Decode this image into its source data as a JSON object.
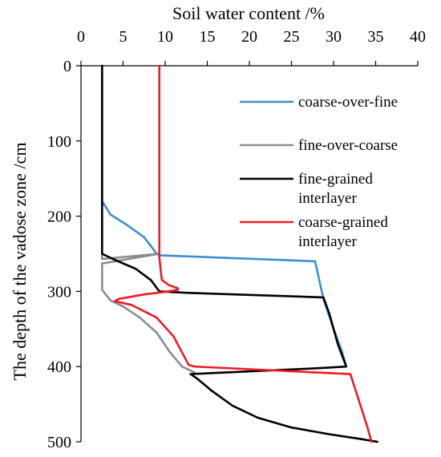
{
  "chart_data": {
    "type": "line",
    "orientation": "depth-profile",
    "title": "",
    "xlabel": "Soil water content /%",
    "ylabel": "The depth of the vadose zone /cm",
    "x_axis_position": "top",
    "y_axis_inverted": true,
    "xlim": [
      0,
      40
    ],
    "ylim": [
      0,
      500
    ],
    "x_ticks": [
      "0",
      "5",
      "10",
      "15",
      "20",
      "25",
      "30",
      "35",
      "40"
    ],
    "y_ticks": [
      "0",
      "100",
      "200",
      "300",
      "400",
      "500"
    ],
    "grid": false,
    "legend_position": "right",
    "series": [
      {
        "name": "coarse-over-fine",
        "color": "#3a8fd1",
        "points": [
          [
            2.5,
            0
          ],
          [
            2.5,
            180
          ],
          [
            3.5,
            198
          ],
          [
            5.5,
            212
          ],
          [
            7.5,
            228
          ],
          [
            9.0,
            250
          ],
          [
            9.3,
            252
          ],
          [
            27.8,
            260
          ],
          [
            28.8,
            310
          ],
          [
            30.0,
            350
          ],
          [
            31.0,
            380
          ],
          [
            31.5,
            400
          ]
        ]
      },
      {
        "name": "fine-over-coarse",
        "color": "#8c8c8c",
        "points": [
          [
            2.5,
            0
          ],
          [
            2.5,
            250
          ],
          [
            2.5,
            257
          ],
          [
            9.3,
            250
          ],
          [
            2.5,
            263
          ],
          [
            2.5,
            298
          ],
          [
            3.5,
            312
          ],
          [
            5.0,
            320
          ],
          [
            7.0,
            335
          ],
          [
            9.0,
            355
          ],
          [
            10.5,
            380
          ],
          [
            12.0,
            400
          ],
          [
            13.5,
            408
          ]
        ]
      },
      {
        "name": "fine-grained interlayer",
        "color": "#000000",
        "points": [
          [
            2.5,
            0
          ],
          [
            2.5,
            250
          ],
          [
            4.0,
            258
          ],
          [
            6.5,
            270
          ],
          [
            8.3,
            285
          ],
          [
            9.3,
            300
          ],
          [
            12.8,
            302
          ],
          [
            28.8,
            308
          ],
          [
            29.5,
            330
          ],
          [
            30.5,
            370
          ],
          [
            31.5,
            400
          ],
          [
            28.5,
            402
          ],
          [
            13.0,
            410
          ],
          [
            13.8,
            416
          ],
          [
            15.5,
            432
          ],
          [
            18.0,
            452
          ],
          [
            21.0,
            468
          ],
          [
            25.0,
            481
          ],
          [
            29.5,
            490
          ],
          [
            33.0,
            496
          ],
          [
            35.2,
            500
          ]
        ]
      },
      {
        "name": "coarse-grained interlayer",
        "color": "#ee1c24",
        "points": [
          [
            9.3,
            0
          ],
          [
            9.3,
            250
          ],
          [
            9.3,
            255
          ],
          [
            9.6,
            285
          ],
          [
            10.5,
            292
          ],
          [
            11.5,
            296
          ],
          [
            11.5,
            298
          ],
          [
            9.8,
            301
          ],
          [
            7.5,
            304
          ],
          [
            4.5,
            310
          ],
          [
            4.0,
            313
          ],
          [
            6.0,
            318
          ],
          [
            9.0,
            335
          ],
          [
            11.0,
            360
          ],
          [
            12.8,
            398
          ],
          [
            13.5,
            400
          ],
          [
            32.0,
            410
          ],
          [
            33.0,
            445
          ],
          [
            34.0,
            480
          ],
          [
            34.5,
            500
          ]
        ]
      }
    ]
  }
}
